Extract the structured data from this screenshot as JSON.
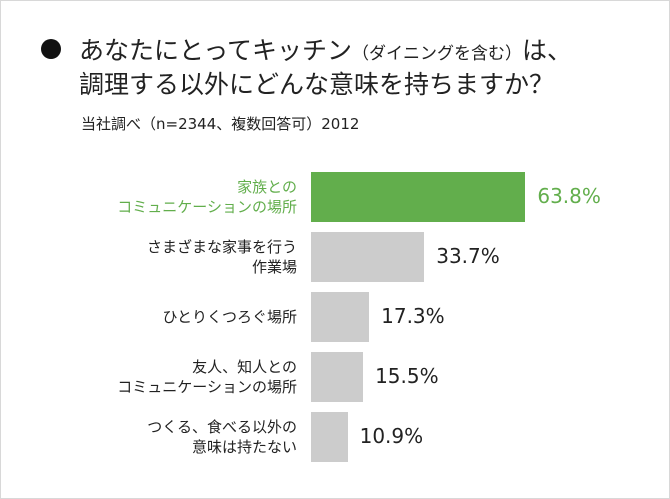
{
  "chart_data": {
    "type": "bar",
    "orientation": "horizontal",
    "title": {
      "lead": "あなたにとってキッチン",
      "note": "（ダイニングを含む）",
      "tail": "は、",
      "line2": "調理する以外にどんな意味を持ちますか？"
    },
    "subtitle": "当社調べ（n=2344、複数回答可）2012",
    "categories": [
      "家族との\nコミュニケーションの場所",
      "さまざまな家事を行う\n作業場",
      "ひとりくつろぐ場所",
      "友人、知人との\nコミュニケーションの場所",
      "つくる、食べる以外の\n意味は持たない"
    ],
    "values": [
      63.8,
      33.7,
      17.3,
      15.5,
      10.9
    ],
    "value_labels": [
      "63.8%",
      "33.7%",
      "17.3%",
      "15.5%",
      "10.9%"
    ],
    "colors": [
      "#62ae4c",
      "#cccccc",
      "#cccccc",
      "#cccccc",
      "#cccccc"
    ],
    "label_colors": [
      "#62ae4c",
      "#222222",
      "#222222",
      "#222222",
      "#222222"
    ]
  }
}
